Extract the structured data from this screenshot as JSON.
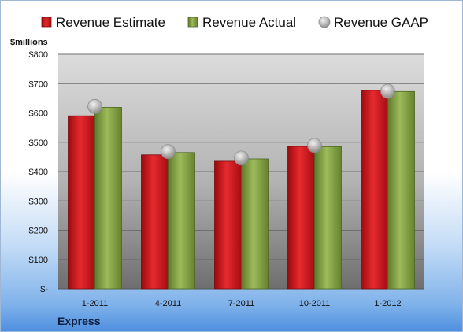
{
  "chart_data": {
    "type": "bar",
    "title": "",
    "xlabel": "",
    "ylabel": "$millions",
    "company": "Express",
    "categories": [
      "1-2011",
      "4-2011",
      "7-2011",
      "10-2011",
      "1-2012"
    ],
    "series": [
      {
        "name": "Revenue Estimate",
        "type": "bar",
        "values": [
          590,
          457,
          435,
          486,
          677
        ],
        "color": "#d9161c"
      },
      {
        "name": "Revenue Actual",
        "type": "bar",
        "values": [
          619,
          465,
          443,
          485,
          673
        ],
        "color": "#86a545"
      },
      {
        "name": "Revenue GAAP",
        "type": "marker",
        "values": [
          622,
          468,
          446,
          489,
          674
        ],
        "color": "#b8b8b8"
      }
    ],
    "yticks": [
      {
        "value": 0,
        "label": "$-"
      },
      {
        "value": 100,
        "label": "$100"
      },
      {
        "value": 200,
        "label": "$200"
      },
      {
        "value": 300,
        "label": "$300"
      },
      {
        "value": 400,
        "label": "$400"
      },
      {
        "value": 500,
        "label": "$500"
      },
      {
        "value": 600,
        "label": "$600"
      },
      {
        "value": 700,
        "label": "$700"
      },
      {
        "value": 800,
        "label": "$800"
      }
    ],
    "ylim": [
      0,
      800
    ],
    "grid": true,
    "legend": "top"
  }
}
